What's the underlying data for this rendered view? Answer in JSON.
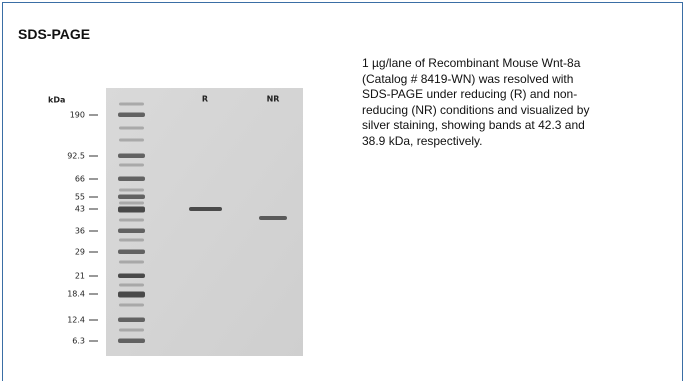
{
  "title": "SDS-PAGE",
  "gel": {
    "unit_label": "kDa",
    "lanes": [
      "R",
      "NR"
    ],
    "markers": [
      "190",
      "92.5",
      "66",
      "55",
      "43",
      "36",
      "29",
      "21",
      "18.4",
      "12.4",
      "6.3"
    ]
  },
  "description": [
    "1 µg/lane of Recombinant Mouse Wnt-8a",
    "(Catalog # 8419-WN) was resolved with",
    "SDS-PAGE under reducing (R) and non-",
    "reducing (NR) conditions and visualized by",
    "silver staining, showing bands at 42.3 and",
    "38.9 kDa, respectively."
  ]
}
